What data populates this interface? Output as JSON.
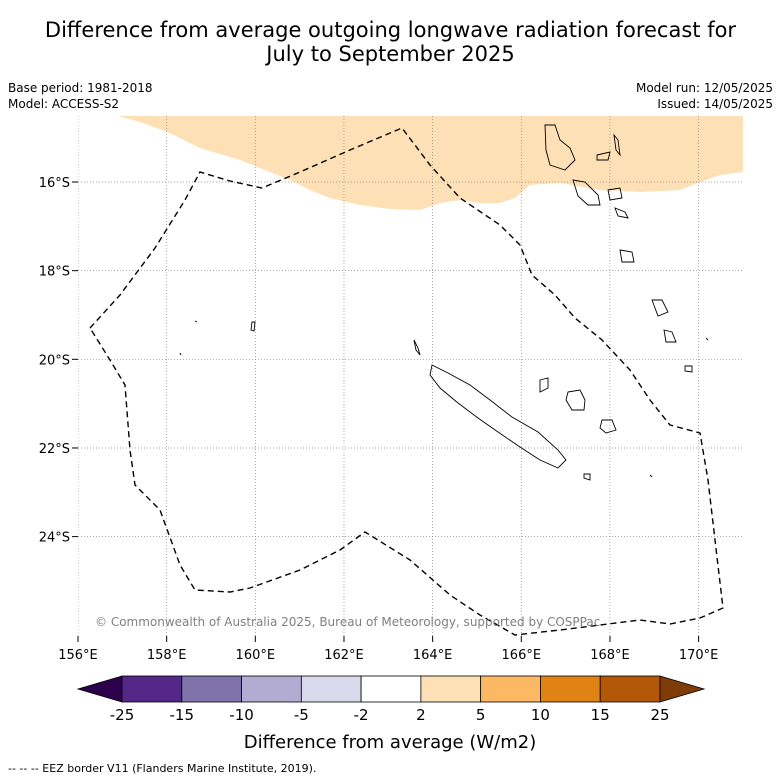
{
  "title_line1": "Difference from average outgoing longwave radiation forecast for",
  "title_line2": "July to September 2025",
  "base_period": "Base period: 1981-2018",
  "model": "Model: ACCESS-S2",
  "model_run": "Model run: 12/05/2025",
  "issued": "Issued: 14/05/2025",
  "copyright": "© Commonwealth of Australia 2025, Bureau of Meteorology, supported by COSPPac",
  "x_ticks": [
    "156°E",
    "158°E",
    "160°E",
    "162°E",
    "164°E",
    "166°E",
    "168°E",
    "170°E"
  ],
  "y_ticks": [
    "16°S",
    "18°S",
    "20°S",
    "22°S",
    "24°S"
  ],
  "colorbar": {
    "label": "Difference from average (W/m2)",
    "ticks": [
      "-25",
      "-15",
      "-10",
      "-5",
      "-2",
      "2",
      "5",
      "10",
      "15",
      "25"
    ],
    "colors": [
      "#2d004b",
      "#542788",
      "#8073ac",
      "#b2abd2",
      "#d8daeb",
      "#ffffff",
      "#fee0b6",
      "#fdb863",
      "#e08214",
      "#b35806",
      "#7f3b08"
    ]
  },
  "footer": "--  --  -- EEZ border V11 (Flanders Marine Institute, 2019).",
  "map_extent": {
    "lon_min": 156,
    "lon_max": 171,
    "lat_min": -26.3,
    "lat_max": -14.2
  },
  "anomaly_fill_color": "#fee0b6"
}
